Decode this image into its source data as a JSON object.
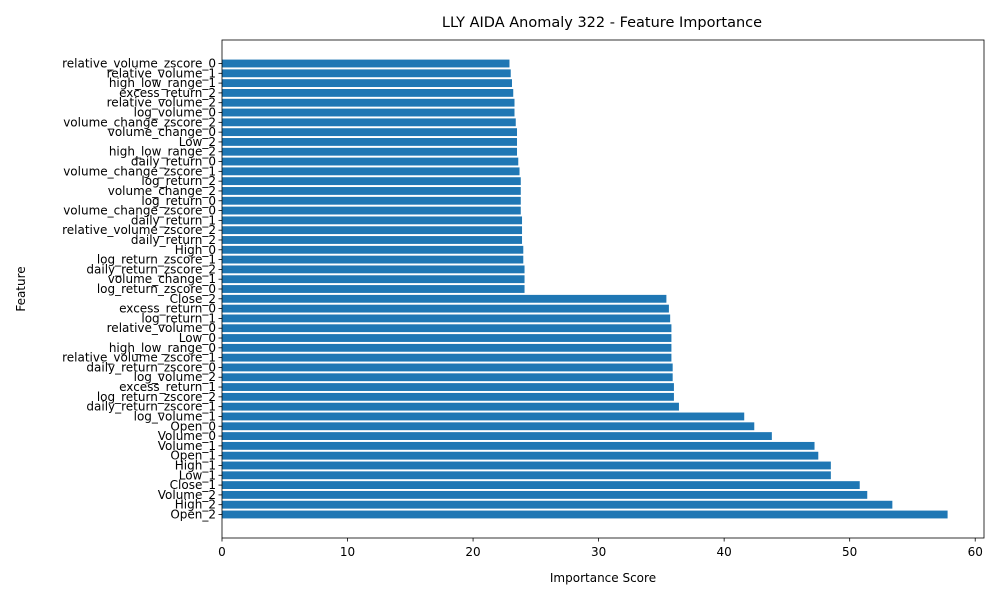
{
  "chart_data": {
    "type": "bar",
    "orientation": "horizontal",
    "title": "LLY AIDA Anomaly 322 - Feature Importance",
    "xlabel": "Importance Score",
    "ylabel": "Feature",
    "xlim": [
      0,
      60.7
    ],
    "xticks": [
      0,
      10,
      20,
      30,
      40,
      50,
      60
    ],
    "bar_color": "#1f77b4",
    "grid": false,
    "categories": [
      "Open_2",
      "High_2",
      "Volume_2",
      "Close_1",
      "Low_1",
      "High_1",
      "Open_1",
      "Volume_1",
      "Volume_0",
      "Open_0",
      "log_volume_1",
      "daily_return_zscore_1",
      "log_return_zscore_2",
      "excess_return_1",
      "log_volume_2",
      "daily_return_zscore_0",
      "relative_volume_zscore_1",
      "high_low_range_0",
      "Low_0",
      "relative_volume_0",
      "log_return_1",
      "excess_return_0",
      "Close_2",
      "log_return_zscore_0",
      "volume_change_1",
      "daily_return_zscore_2",
      "log_return_zscore_1",
      "High_0",
      "daily_return_2",
      "relative_volume_zscore_2",
      "daily_return_1",
      "volume_change_zscore_0",
      "log_return_0",
      "volume_change_2",
      "log_return_2",
      "volume_change_zscore_1",
      "daily_return_0",
      "high_low_range_2",
      "Low_2",
      "volume_change_0",
      "volume_change_zscore_2",
      "log_volume_0",
      "relative_volume_2",
      "excess_return_2",
      "high_low_range_1",
      "relative_volume_1",
      "relative_volume_zscore_0"
    ],
    "values": [
      57.8,
      53.4,
      51.4,
      50.8,
      48.5,
      48.5,
      47.5,
      47.2,
      43.8,
      42.4,
      41.6,
      36.4,
      36.0,
      36.0,
      35.9,
      35.9,
      35.8,
      35.8,
      35.8,
      35.8,
      35.7,
      35.6,
      35.4,
      24.1,
      24.1,
      24.1,
      24.0,
      24.0,
      23.9,
      23.9,
      23.9,
      23.8,
      23.8,
      23.8,
      23.8,
      23.7,
      23.6,
      23.5,
      23.5,
      23.5,
      23.4,
      23.3,
      23.3,
      23.2,
      23.1,
      23.0,
      22.9
    ]
  }
}
